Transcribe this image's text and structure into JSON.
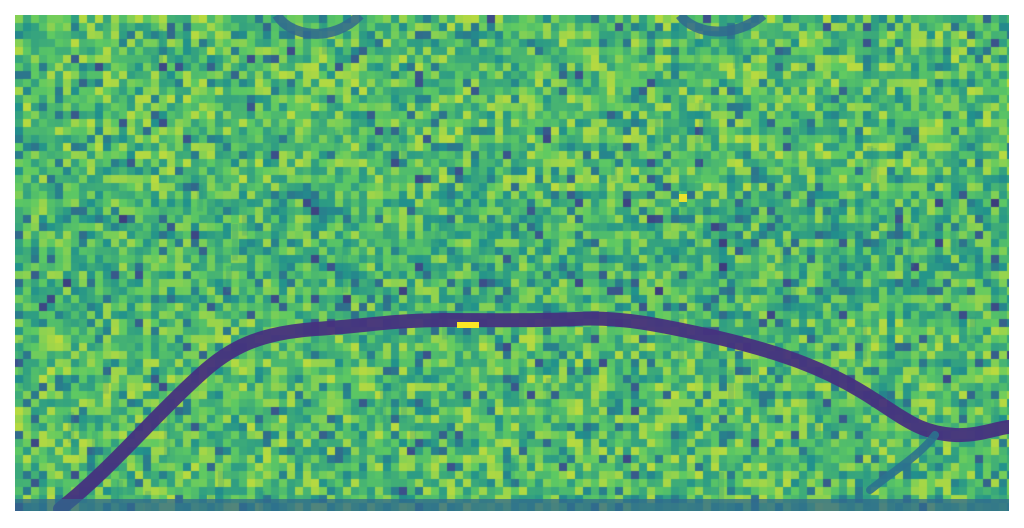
{
  "image": {
    "kind": "false-color heatmap (viridis)",
    "colormap": "viridis",
    "colors": {
      "low": "#440154",
      "low_mid": "#3b528b",
      "mid": "#21918c",
      "high_mid": "#5ec962",
      "high": "#fde725",
      "background": "#ffffff"
    },
    "features": [
      {
        "name": "dark-arched-channel",
        "description_color": "#46327e"
      },
      {
        "name": "right-branch-channel",
        "description_color": "#2c728e"
      },
      {
        "name": "top-left-dark-arc",
        "description_color": "#31688e"
      },
      {
        "name": "top-right-dark-arc",
        "description_color": "#31688e"
      },
      {
        "name": "bright-yellow-spot",
        "description_color": "#fde725"
      },
      {
        "name": "bottom-dark-band",
        "description_color": "#31688e"
      }
    ]
  }
}
